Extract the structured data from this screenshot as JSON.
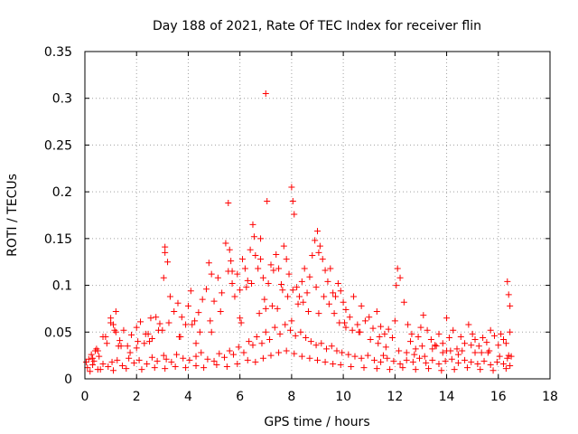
{
  "chart_data": {
    "type": "scatter",
    "title": "Day 188 of 2021, Rate Of TEC Index for receiver flin",
    "xlabel": "GPS time / hours",
    "ylabel": "ROTI / TECUs",
    "xlim": [
      0,
      18
    ],
    "ylim": [
      0,
      0.35
    ],
    "xticks": [
      "0",
      "2",
      "4",
      "6",
      "8",
      "10",
      "12",
      "14",
      "16",
      "18"
    ],
    "yticks": [
      "0",
      "0.05",
      "0.1",
      "0.15",
      "0.2",
      "0.25",
      "0.3",
      "0.35"
    ],
    "grid": true,
    "marker": "plus",
    "color": "#ff0000",
    "series": [
      {
        "x": [
          0.05,
          0.15,
          0.25,
          0.35,
          0.45,
          0.55,
          0.7,
          0.85,
          1.0,
          1.1,
          1.2,
          1.35,
          1.5,
          1.65,
          1.8,
          2.0,
          2.15,
          2.3,
          2.45,
          2.6,
          2.75,
          2.9,
          3.0,
          3.05,
          3.1,
          3.2,
          3.3,
          3.45,
          3.6,
          3.75,
          3.9,
          4.0,
          4.1,
          4.25,
          4.4,
          4.55,
          4.7,
          4.8,
          4.9,
          5.0,
          5.15,
          5.3,
          5.45,
          5.55,
          5.6,
          5.65,
          5.7,
          5.8,
          5.9,
          6.0,
          6.1,
          6.2,
          6.3,
          6.4,
          6.5,
          6.55,
          6.6,
          6.7,
          6.8,
          6.9,
          7.0,
          7.05,
          7.1,
          7.2,
          7.3,
          7.4,
          7.5,
          7.6,
          7.7,
          7.8,
          7.9,
          8.0,
          8.05,
          8.1,
          8.2,
          8.3,
          8.4,
          8.5,
          8.6,
          8.7,
          8.8,
          8.9,
          9.0,
          9.1,
          9.2,
          9.3,
          9.4,
          9.5,
          9.6,
          9.7,
          9.8,
          9.9,
          10.0,
          10.1,
          10.25,
          10.4,
          10.55,
          10.7,
          10.85,
          11.0,
          11.15,
          11.3,
          11.45,
          11.6,
          11.75,
          11.9,
          12.0,
          12.1,
          12.2,
          12.35,
          12.5,
          12.65,
          12.8,
          12.9,
          13.0,
          13.1,
          13.25,
          13.4,
          13.55,
          13.7,
          13.85,
          14.0,
          14.1,
          14.25,
          14.4,
          14.55,
          14.7,
          14.85,
          15.0,
          15.1,
          15.25,
          15.4,
          15.55,
          15.7,
          15.85,
          16.0,
          16.1,
          16.2,
          16.3,
          16.35,
          16.4,
          16.45,
          16.5,
          0.1,
          0.3,
          0.5,
          0.7,
          0.9,
          1.05,
          1.25,
          1.45,
          1.7,
          1.9,
          2.1,
          2.4,
          2.6,
          2.8,
          3.05,
          3.15,
          3.35,
          3.55,
          3.8,
          4.05,
          4.3,
          4.5,
          4.75,
          5.0,
          5.2,
          5.4,
          5.6,
          5.75,
          5.95,
          6.15,
          6.35,
          6.5,
          6.65,
          6.85,
          7.0,
          7.15,
          7.35,
          7.55,
          7.75,
          7.95,
          8.15,
          8.35,
          8.55,
          8.75,
          8.95,
          9.15,
          9.35,
          9.55,
          9.75,
          9.95,
          10.2,
          10.45,
          10.7,
          10.95,
          11.2,
          11.45,
          11.7,
          11.95,
          12.2,
          12.45,
          12.7,
          12.95,
          13.2,
          13.45,
          13.7,
          13.95,
          14.2,
          14.45,
          14.7,
          14.95,
          15.2,
          15.45,
          15.7,
          15.95,
          16.2,
          16.45,
          0.2,
          0.6,
          1.1,
          1.6,
          2.2,
          2.7,
          3.1,
          3.5,
          3.9,
          4.3,
          4.6,
          5.1,
          5.5,
          5.9,
          6.3,
          6.6,
          6.9,
          7.2,
          7.5,
          7.8,
          8.1,
          8.4,
          8.7,
          9.0,
          9.3,
          9.6,
          9.9,
          10.3,
          10.8,
          11.3,
          11.8,
          12.3,
          12.8,
          13.3,
          13.8,
          14.3,
          14.8,
          15.3,
          15.8,
          16.3,
          0.4,
          1.3,
          2.5,
          3.7,
          4.9,
          6.05,
          6.75,
          7.45,
          8.25,
          9.05,
          9.85,
          10.6,
          11.4,
          12.6,
          13.6,
          14.6,
          15.6,
          16.4,
          7.0,
          8.05,
          5.55,
          3.1,
          6.8,
          9.05,
          12.05,
          16.45,
          8.0,
          6.0,
          10.1,
          4.3,
          2.0,
          14.0,
          11.55,
          15.1,
          1.15,
          13.05,
          0.3,
          0.5,
          0.8,
          1.0,
          1.2,
          1.4,
          1.75,
          2.05,
          2.35,
          2.55,
          2.85,
          3.25,
          3.65,
          4.15,
          4.45,
          4.85,
          5.25,
          5.7,
          6.25,
          6.45,
          6.95,
          7.25,
          7.65,
          7.85,
          8.45,
          8.65,
          8.95,
          9.25,
          9.45,
          9.65,
          10.05,
          10.35,
          10.65,
          11.05,
          11.35,
          11.65,
          12.15,
          12.45,
          12.75,
          13.15,
          13.45,
          13.85,
          14.15,
          14.45,
          14.95,
          15.35,
          15.65,
          16.05,
          16.35
        ],
        "y": [
          0.018,
          0.021,
          0.026,
          0.019,
          0.032,
          0.024,
          0.045,
          0.038,
          0.065,
          0.058,
          0.072,
          0.041,
          0.052,
          0.035,
          0.047,
          0.055,
          0.061,
          0.038,
          0.048,
          0.043,
          0.066,
          0.059,
          0.052,
          0.108,
          0.141,
          0.125,
          0.088,
          0.072,
          0.081,
          0.066,
          0.058,
          0.078,
          0.094,
          0.062,
          0.071,
          0.085,
          0.096,
          0.124,
          0.112,
          0.083,
          0.108,
          0.092,
          0.145,
          0.188,
          0.138,
          0.126,
          0.102,
          0.088,
          0.112,
          0.095,
          0.128,
          0.118,
          0.105,
          0.138,
          0.165,
          0.152,
          0.132,
          0.118,
          0.128,
          0.108,
          0.305,
          0.19,
          0.102,
          0.122,
          0.116,
          0.133,
          0.118,
          0.101,
          0.142,
          0.128,
          0.112,
          0.205,
          0.19,
          0.176,
          0.098,
          0.088,
          0.104,
          0.118,
          0.092,
          0.109,
          0.132,
          0.148,
          0.158,
          0.142,
          0.128,
          0.116,
          0.104,
          0.118,
          0.092,
          0.088,
          0.102,
          0.094,
          0.082,
          0.074,
          0.066,
          0.088,
          0.058,
          0.078,
          0.062,
          0.066,
          0.054,
          0.072,
          0.056,
          0.048,
          0.053,
          0.044,
          0.062,
          0.118,
          0.108,
          0.082,
          0.058,
          0.048,
          0.032,
          0.045,
          0.055,
          0.068,
          0.052,
          0.042,
          0.036,
          0.048,
          0.038,
          0.065,
          0.044,
          0.052,
          0.032,
          0.045,
          0.038,
          0.058,
          0.048,
          0.042,
          0.035,
          0.044,
          0.039,
          0.052,
          0.046,
          0.036,
          0.048,
          0.042,
          0.038,
          0.104,
          0.09,
          0.078,
          0.024,
          0.012,
          0.015,
          0.01,
          0.016,
          0.013,
          0.018,
          0.02,
          0.014,
          0.022,
          0.017,
          0.02,
          0.016,
          0.023,
          0.019,
          0.025,
          0.021,
          0.018,
          0.026,
          0.022,
          0.02,
          0.024,
          0.028,
          0.021,
          0.019,
          0.027,
          0.023,
          0.03,
          0.026,
          0.034,
          0.028,
          0.04,
          0.036,
          0.045,
          0.038,
          0.05,
          0.042,
          0.055,
          0.048,
          0.058,
          0.052,
          0.046,
          0.05,
          0.044,
          0.04,
          0.036,
          0.038,
          0.032,
          0.035,
          0.03,
          0.028,
          0.026,
          0.024,
          0.022,
          0.025,
          0.02,
          0.018,
          0.022,
          0.019,
          0.016,
          0.02,
          0.018,
          0.022,
          0.017,
          0.02,
          0.016,
          0.019,
          0.021,
          0.017,
          0.02,
          0.018,
          0.016,
          0.019,
          0.015,
          0.018,
          0.016,
          0.014,
          0.008,
          0.01,
          0.009,
          0.011,
          0.01,
          0.012,
          0.011,
          0.013,
          0.012,
          0.014,
          0.012,
          0.015,
          0.013,
          0.016,
          0.02,
          0.018,
          0.022,
          0.025,
          0.028,
          0.03,
          0.027,
          0.024,
          0.022,
          0.02,
          0.018,
          0.016,
          0.015,
          0.013,
          0.012,
          0.011,
          0.01,
          0.012,
          0.01,
          0.011,
          0.009,
          0.01,
          0.012,
          0.01,
          0.009,
          0.011,
          0.03,
          0.035,
          0.04,
          0.045,
          0.05,
          0.06,
          0.07,
          0.075,
          0.08,
          0.07,
          0.06,
          0.05,
          0.045,
          0.04,
          0.035,
          0.03,
          0.028,
          0.025,
          0.075,
          0.095,
          0.115,
          0.135,
          0.15,
          0.135,
          0.1,
          0.05,
          0.062,
          0.065,
          0.055,
          0.038,
          0.033,
          0.03,
          0.025,
          0.028,
          0.052,
          0.035,
          0.022,
          0.03,
          0.045,
          0.06,
          0.05,
          0.035,
          0.028,
          0.04,
          0.048,
          0.065,
          0.052,
          0.06,
          0.045,
          0.058,
          0.05,
          0.062,
          0.072,
          0.115,
          0.098,
          0.102,
          0.085,
          0.078,
          0.095,
          0.088,
          0.082,
          0.072,
          0.098,
          0.088,
          0.08,
          0.07,
          0.06,
          0.052,
          0.05,
          0.042,
          0.038,
          0.034,
          0.03,
          0.028,
          0.026,
          0.024,
          0.032,
          0.028,
          0.03,
          0.026,
          0.036,
          0.028,
          0.03,
          0.024,
          0.022
        ]
      }
    ]
  }
}
